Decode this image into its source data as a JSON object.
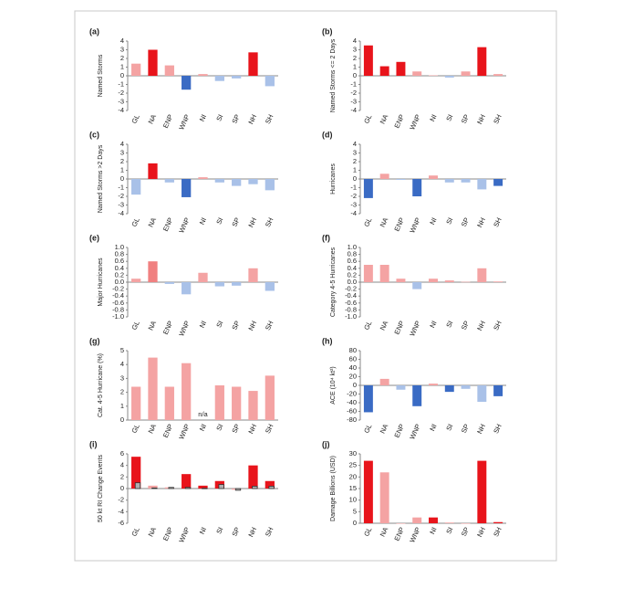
{
  "chart_data": [
    {
      "type": "bar",
      "title": "(a)",
      "ylabel": "Named Storms",
      "categories": [
        "GL",
        "NA",
        "ENP",
        "WNP",
        "NI",
        "SI",
        "SP",
        "NH",
        "SH"
      ],
      "series": [
        {
          "colors": [
            "#f4a3a3",
            "#e8141b",
            "#f4a3a3",
            "#3a6bc4",
            "#f4a3a3",
            "#a9c1e8",
            "#a9c1e8",
            "#e8141b",
            "#a9c1e8"
          ],
          "values": [
            1.4,
            3.0,
            1.2,
            -1.6,
            0.2,
            -0.6,
            -0.3,
            2.7,
            -1.2
          ]
        }
      ],
      "ylim": [
        -4,
        4
      ],
      "yticks": [
        -4,
        -3,
        -2,
        -1,
        0,
        1,
        2,
        3,
        4
      ]
    },
    {
      "type": "bar",
      "title": "(b)",
      "ylabel": "Named Storms <= 2 Days",
      "categories": [
        "GL",
        "NA",
        "ENP",
        "WNP",
        "NI",
        "SI",
        "SP",
        "NH",
        "SH"
      ],
      "series": [
        {
          "colors": [
            "#e8141b",
            "#e8141b",
            "#e8141b",
            "#f4a3a3",
            "#f4a3a3",
            "#a9c1e8",
            "#f4a3a3",
            "#e8141b",
            "#f4a3a3"
          ],
          "values": [
            3.5,
            1.1,
            1.6,
            0.5,
            0.05,
            -0.2,
            0.5,
            3.3,
            0.2
          ]
        }
      ],
      "ylim": [
        -4,
        4
      ],
      "yticks": [
        -4,
        -3,
        -2,
        -1,
        0,
        1,
        2,
        3,
        4
      ]
    },
    {
      "type": "bar",
      "title": "(c)",
      "ylabel": "Named Storms >2 Days",
      "categories": [
        "GL",
        "NA",
        "ENP",
        "WNP",
        "NI",
        "SI",
        "SP",
        "NH",
        "SH"
      ],
      "series": [
        {
          "colors": [
            "#a9c1e8",
            "#e8141b",
            "#a9c1e8",
            "#3a6bc4",
            "#f4a3a3",
            "#a9c1e8",
            "#a9c1e8",
            "#a9c1e8",
            "#a9c1e8"
          ],
          "values": [
            -1.8,
            1.8,
            -0.4,
            -2.1,
            0.2,
            -0.4,
            -0.8,
            -0.6,
            -1.3
          ]
        }
      ],
      "ylim": [
        -4,
        4
      ],
      "yticks": [
        -4,
        -3,
        -2,
        -1,
        0,
        1,
        2,
        3,
        4
      ]
    },
    {
      "type": "bar",
      "title": "(d)",
      "ylabel": "Hurricanes",
      "categories": [
        "GL",
        "NA",
        "ENP",
        "WNP",
        "NI",
        "SI",
        "SP",
        "NH",
        "SH"
      ],
      "series": [
        {
          "colors": [
            "#3a6bc4",
            "#f4a3a3",
            "#a9c1e8",
            "#3a6bc4",
            "#f4a3a3",
            "#a9c1e8",
            "#a9c1e8",
            "#a9c1e8",
            "#3a6bc4"
          ],
          "values": [
            -2.2,
            0.6,
            -0.1,
            -2.0,
            0.4,
            -0.4,
            -0.4,
            -1.2,
            -0.8
          ]
        }
      ],
      "ylim": [
        -4,
        4
      ],
      "yticks": [
        -4,
        -3,
        -2,
        -1,
        0,
        1,
        2,
        3,
        4
      ]
    },
    {
      "type": "bar",
      "title": "(e)",
      "ylabel": "Major Hurricanes",
      "categories": [
        "GL",
        "NA",
        "ENP",
        "WNP",
        "NI",
        "SI",
        "SP",
        "NH",
        "SH"
      ],
      "series": [
        {
          "colors": [
            "#f4a3a3",
            "#f08080",
            "#a9c1e8",
            "#a9c1e8",
            "#f4a3a3",
            "#a9c1e8",
            "#a9c1e8",
            "#f4a3a3",
            "#a9c1e8"
          ],
          "values": [
            0.1,
            0.6,
            -0.05,
            -0.35,
            0.27,
            -0.12,
            -0.1,
            0.4,
            -0.25
          ]
        }
      ],
      "ylim": [
        -1,
        1
      ],
      "yticks": [
        {
          "value": -1,
          "label": "-1.0"
        },
        -0.8,
        -0.6,
        -0.4,
        -0.2,
        {
          "value": 0,
          "label": "0.0"
        },
        0.2,
        0.4,
        0.6,
        0.8,
        {
          "value": 1,
          "label": "1.0"
        }
      ]
    },
    {
      "type": "bar",
      "title": "(f)",
      "ylabel": "Category 4-5 Hurricanes",
      "categories": [
        "GL",
        "NA",
        "ENP",
        "WNP",
        "NI",
        "SI",
        "SP",
        "NH",
        "SH"
      ],
      "series": [
        {
          "colors": [
            "#f4a3a3",
            "#f4a3a3",
            "#f4a3a3",
            "#a9c1e8",
            "#f4a3a3",
            "#f4a3a3",
            "#f4a3a3",
            "#f4a3a3",
            "#f4a3a3"
          ],
          "values": [
            0.5,
            0.5,
            0.1,
            -0.2,
            0.1,
            0.05,
            0.01,
            0.4,
            0.02
          ]
        }
      ],
      "ylim": [
        -1,
        1
      ],
      "yticks": [
        {
          "value": -1,
          "label": "-1.0"
        },
        -0.8,
        -0.6,
        -0.4,
        -0.2,
        {
          "value": 0,
          "label": "0.0"
        },
        0.2,
        0.4,
        0.6,
        0.8,
        {
          "value": 1,
          "label": "1.0"
        }
      ]
    },
    {
      "type": "bar",
      "title": "(g)",
      "ylabel": "Cat. 4-5 Hurricane (%)",
      "categories": [
        "GL",
        "NA",
        "ENP",
        "WNP",
        "NI",
        "SI",
        "SP",
        "NH",
        "SH"
      ],
      "series": [
        {
          "colors": [
            "#f4a3a3",
            "#f4a3a3",
            "#f4a3a3",
            "#f4a3a3",
            "#f4a3a3",
            "#f4a3a3",
            "#f4a3a3",
            "#f4a3a3",
            "#f4a3a3"
          ],
          "values": [
            2.4,
            4.5,
            2.4,
            4.1,
            null,
            2.5,
            2.4,
            2.1,
            3.2
          ]
        }
      ],
      "annotation": "n/a",
      "ylim": [
        0,
        5
      ],
      "yticks": [
        0,
        1,
        2,
        3,
        4,
        5
      ]
    },
    {
      "type": "bar",
      "title": "(h)",
      "ylabel": "ACE (10⁴ kt²)",
      "categories": [
        "GL",
        "NA",
        "ENP",
        "WNP",
        "NI",
        "SI",
        "SP",
        "NH",
        "SH"
      ],
      "series": [
        {
          "colors": [
            "#3a6bc4",
            "#f4a3a3",
            "#a9c1e8",
            "#3a6bc4",
            "#f4a3a3",
            "#3a6bc4",
            "#a9c1e8",
            "#a9c1e8",
            "#3a6bc4"
          ],
          "values": [
            -62,
            15,
            -10,
            -48,
            4,
            -15,
            -8,
            -38,
            -25
          ]
        }
      ],
      "ylim": [
        -80,
        80
      ],
      "yticks": [
        -80,
        -60,
        -40,
        -20,
        0,
        20,
        40,
        60,
        80
      ]
    },
    {
      "type": "bar",
      "title": "(i)",
      "ylabel": "50 kt RI Change Events",
      "categories": [
        "GL",
        "NA",
        "ENP",
        "WNP",
        "NI",
        "SI",
        "SP",
        "NH",
        "SH"
      ],
      "series": [
        {
          "colors": [
            "#e8141b",
            "#f4a3a3",
            "#f4a3a3",
            "#e8141b",
            "#e8141b",
            "#e8141b",
            "#f4a3a3",
            "#e8141b",
            "#e8141b"
          ],
          "values": [
            5.5,
            0.5,
            0.2,
            2.5,
            0.5,
            1.3,
            -0.2,
            4.0,
            1.3
          ]
        },
        {
          "color": "#b0b0b0",
          "edgecolor": "#333333",
          "values": [
            1.0,
            0.1,
            0.2,
            0.2,
            0.05,
            0.7,
            -0.3,
            0.4,
            0.4
          ]
        }
      ],
      "ylim": [
        -6,
        6
      ],
      "yticks": [
        -6,
        -4,
        -2,
        0,
        2,
        4,
        6
      ]
    },
    {
      "type": "bar",
      "title": "(j)",
      "ylabel": "Damage Billions (USD)",
      "categories": [
        "GL",
        "NA",
        "ENP",
        "WNP",
        "NI",
        "SI",
        "SP",
        "NH",
        "SH"
      ],
      "series": [
        {
          "colors": [
            "#e8141b",
            "#f4a3a3",
            "#f4a3a3",
            "#f4a3a3",
            "#e8141b",
            "#f4a3a3",
            "#f4a3a3",
            "#e8141b",
            "#e8141b"
          ],
          "values": [
            27,
            22,
            0,
            2.5,
            2.5,
            0.3,
            0,
            27,
            0.5
          ]
        }
      ],
      "ylim": [
        0,
        30
      ],
      "yticks": [
        0,
        5,
        10,
        15,
        20,
        25,
        30
      ]
    }
  ]
}
